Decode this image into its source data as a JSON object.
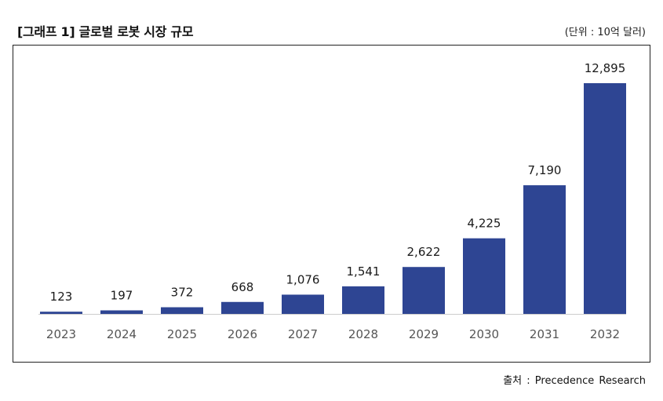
{
  "header": {
    "title": "[그래프 1] 글로벌 로봇 시장 규모",
    "unit": "(단위 : 10억 달러)"
  },
  "footer": {
    "source": "출처 : Precedence Research"
  },
  "colors": {
    "bar": "#2e4593",
    "axis": "#cccccc"
  },
  "chart_data": {
    "type": "bar",
    "title": "[그래프 1] 글로벌 로봇 시장 규모",
    "xlabel": "",
    "ylabel": "",
    "unit": "(단위 : 10억 달러)",
    "categories": [
      "2023",
      "2024",
      "2025",
      "2026",
      "2027",
      "2028",
      "2029",
      "2030",
      "2031",
      "2032"
    ],
    "values": [
      123,
      197,
      372,
      668,
      1076,
      1541,
      2622,
      4225,
      7190,
      12895
    ],
    "value_labels": [
      "123",
      "197",
      "372",
      "668",
      "1,076",
      "1,541",
      "2,622",
      "4,225",
      "7,190",
      "12,895"
    ],
    "ylim": [
      0,
      12895
    ],
    "grid": false,
    "legend": "none"
  }
}
